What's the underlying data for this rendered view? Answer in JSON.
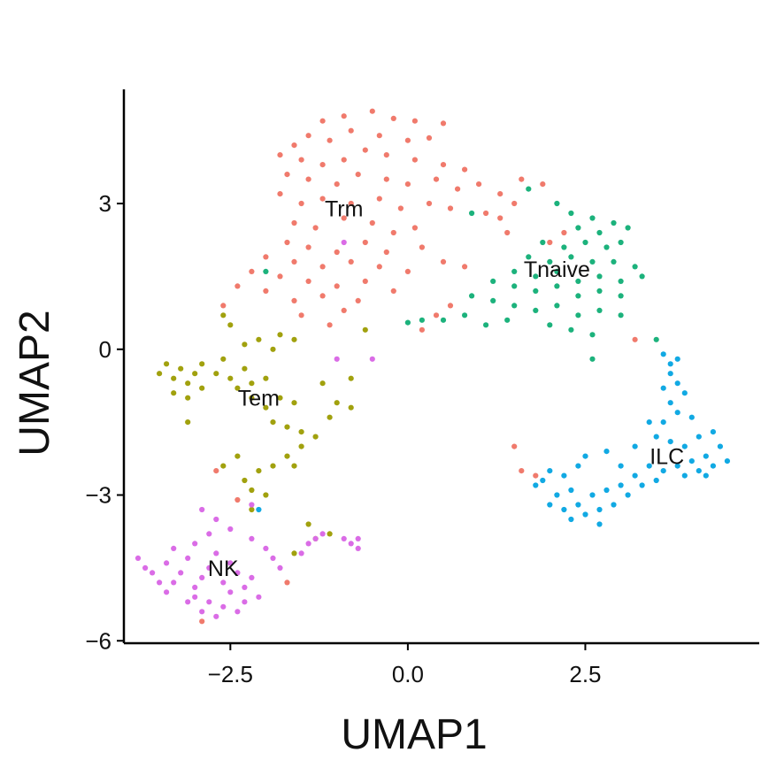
{
  "chart_data": {
    "type": "scatter",
    "title": "",
    "xlabel": "UMAP1",
    "ylabel": "UMAP2",
    "xlim": [
      -4.0,
      4.95
    ],
    "ylim": [
      -6.05,
      5.35
    ],
    "x_ticks": [
      -2.5,
      0.0,
      2.5
    ],
    "x_tick_labels": [
      "−2.5",
      "0.0",
      "2.5"
    ],
    "y_ticks": [
      -6,
      -3,
      0,
      3
    ],
    "y_tick_labels": [
      "−6",
      "−3",
      "0",
      "3"
    ],
    "grid": false,
    "legend": "none",
    "point_colors": {
      "Trm": "#F07A6C",
      "Tnaive": "#1CB27C",
      "Tem": "#A1A10E",
      "NK": "#DA6CE6",
      "ILC": "#11A9E3"
    },
    "cluster_labels": [
      {
        "name": "Trm",
        "x": -0.9,
        "y": 2.9
      },
      {
        "name": "Tnaive",
        "x": 2.1,
        "y": 1.65
      },
      {
        "name": "Tem",
        "x": -2.1,
        "y": -1.0
      },
      {
        "name": "NK",
        "x": -2.6,
        "y": -4.5
      },
      {
        "name": "ILC",
        "x": 3.65,
        "y": -2.2
      }
    ],
    "series": [
      {
        "name": "Trm",
        "points": [
          [
            -1.2,
            4.7
          ],
          [
            -0.9,
            4.8
          ],
          [
            -0.5,
            4.9
          ],
          [
            -0.2,
            4.75
          ],
          [
            0.1,
            4.7
          ],
          [
            0.5,
            4.65
          ],
          [
            -1.6,
            4.2
          ],
          [
            -1.4,
            4.4
          ],
          [
            -1.1,
            4.3
          ],
          [
            -0.8,
            4.5
          ],
          [
            -0.4,
            4.4
          ],
          [
            0.0,
            4.3
          ],
          [
            0.3,
            4.35
          ],
          [
            -1.8,
            4.0
          ],
          [
            -1.5,
            3.9
          ],
          [
            -1.2,
            3.8
          ],
          [
            -0.9,
            3.9
          ],
          [
            -0.6,
            4.1
          ],
          [
            -0.3,
            4.0
          ],
          [
            0.1,
            3.9
          ],
          [
            0.5,
            3.8
          ],
          [
            0.8,
            3.7
          ],
          [
            -1.7,
            3.6
          ],
          [
            -1.4,
            3.5
          ],
          [
            -1.0,
            3.4
          ],
          [
            -0.7,
            3.6
          ],
          [
            -0.3,
            3.5
          ],
          [
            0.0,
            3.4
          ],
          [
            0.4,
            3.5
          ],
          [
            0.7,
            3.3
          ],
          [
            1.0,
            3.4
          ],
          [
            1.3,
            3.2
          ],
          [
            -1.8,
            3.2
          ],
          [
            -1.5,
            3.0
          ],
          [
            -1.2,
            3.1
          ],
          [
            -0.8,
            3.0
          ],
          [
            -0.4,
            3.1
          ],
          [
            -0.1,
            2.9
          ],
          [
            0.3,
            3.0
          ],
          [
            0.6,
            2.9
          ],
          [
            1.1,
            2.8
          ],
          [
            1.5,
            3.0
          ],
          [
            1.6,
            3.5
          ],
          [
            1.9,
            3.4
          ],
          [
            -1.6,
            2.6
          ],
          [
            -1.3,
            2.5
          ],
          [
            -0.9,
            2.7
          ],
          [
            -0.5,
            2.6
          ],
          [
            -0.2,
            2.4
          ],
          [
            0.1,
            2.5
          ],
          [
            1.4,
            2.4
          ],
          [
            1.3,
            2.7
          ],
          [
            -1.7,
            2.2
          ],
          [
            -1.4,
            2.1
          ],
          [
            -1.0,
            2.0
          ],
          [
            -0.6,
            2.2
          ],
          [
            -0.3,
            2.0
          ],
          [
            0.2,
            2.1
          ],
          [
            -2.0,
            1.9
          ],
          [
            -1.6,
            1.8
          ],
          [
            -1.2,
            1.7
          ],
          [
            -0.8,
            1.8
          ],
          [
            -0.4,
            1.7
          ],
          [
            0.0,
            1.6
          ],
          [
            0.5,
            1.8
          ],
          [
            0.8,
            1.7
          ],
          [
            -2.2,
            1.6
          ],
          [
            -1.8,
            1.5
          ],
          [
            -1.4,
            1.4
          ],
          [
            -1.0,
            1.3
          ],
          [
            -0.6,
            1.4
          ],
          [
            -0.2,
            1.2
          ],
          [
            -2.4,
            1.3
          ],
          [
            -2.0,
            1.2
          ],
          [
            -1.6,
            1.0
          ],
          [
            -1.2,
            1.1
          ],
          [
            -0.7,
            1.0
          ],
          [
            -2.6,
            0.9
          ],
          [
            -1.5,
            0.7
          ],
          [
            -0.9,
            0.8
          ],
          [
            0.4,
            0.7
          ],
          [
            0.6,
            0.9
          ],
          [
            -1.1,
            0.5
          ],
          [
            0.2,
            0.4
          ],
          [
            2.2,
            2.4
          ],
          [
            2.0,
            2.2
          ],
          [
            3.2,
            0.2
          ],
          [
            1.5,
            -2.0
          ],
          [
            1.6,
            -2.5
          ],
          [
            1.8,
            -2.6
          ],
          [
            -2.7,
            -2.5
          ],
          [
            -2.4,
            -3.1
          ],
          [
            -1.7,
            -4.8
          ],
          [
            -2.9,
            -5.6
          ]
        ]
      },
      {
        "name": "Tnaive",
        "points": [
          [
            1.7,
            3.3
          ],
          [
            2.1,
            3.0
          ],
          [
            2.3,
            2.8
          ],
          [
            2.6,
            2.7
          ],
          [
            2.4,
            2.5
          ],
          [
            2.7,
            2.4
          ],
          [
            2.9,
            2.6
          ],
          [
            3.1,
            2.5
          ],
          [
            1.9,
            2.2
          ],
          [
            2.2,
            2.1
          ],
          [
            2.5,
            2.2
          ],
          [
            2.8,
            2.1
          ],
          [
            3.0,
            2.2
          ],
          [
            1.7,
            1.9
          ],
          [
            2.0,
            1.8
          ],
          [
            2.3,
            1.9
          ],
          [
            2.6,
            1.8
          ],
          [
            2.9,
            1.8
          ],
          [
            3.2,
            1.7
          ],
          [
            1.5,
            1.6
          ],
          [
            1.8,
            1.5
          ],
          [
            2.1,
            1.6
          ],
          [
            2.4,
            1.4
          ],
          [
            2.7,
            1.5
          ],
          [
            3.0,
            1.4
          ],
          [
            3.3,
            1.5
          ],
          [
            1.2,
            1.4
          ],
          [
            1.5,
            1.3
          ],
          [
            1.8,
            1.2
          ],
          [
            2.1,
            1.3
          ],
          [
            2.4,
            1.1
          ],
          [
            2.7,
            1.2
          ],
          [
            3.0,
            1.1
          ],
          [
            0.9,
            1.1
          ],
          [
            1.2,
            1.0
          ],
          [
            1.5,
            0.9
          ],
          [
            1.8,
            0.8
          ],
          [
            2.1,
            0.9
          ],
          [
            2.4,
            0.7
          ],
          [
            2.7,
            0.8
          ],
          [
            3.0,
            0.7
          ],
          [
            0.5,
            0.6
          ],
          [
            0.8,
            0.7
          ],
          [
            1.1,
            0.5
          ],
          [
            1.4,
            0.6
          ],
          [
            2.0,
            0.5
          ],
          [
            2.3,
            0.4
          ],
          [
            2.6,
            0.3
          ],
          [
            0.2,
            0.6
          ],
          [
            0.0,
            0.55
          ],
          [
            0.9,
            2.8
          ],
          [
            -2.0,
            1.6
          ],
          [
            2.6,
            -0.2
          ],
          [
            3.5,
            0.2
          ]
        ]
      },
      {
        "name": "Tem",
        "points": [
          [
            -3.5,
            -0.5
          ],
          [
            -3.4,
            -0.3
          ],
          [
            -3.3,
            -0.6
          ],
          [
            -3.2,
            -0.4
          ],
          [
            -3.1,
            -0.7
          ],
          [
            -3.0,
            -0.5
          ],
          [
            -2.9,
            -0.8
          ],
          [
            -3.3,
            -0.9
          ],
          [
            -3.1,
            -1.0
          ],
          [
            -2.9,
            -0.3
          ],
          [
            -2.7,
            -0.5
          ],
          [
            -2.6,
            -0.2
          ],
          [
            -2.5,
            -0.6
          ],
          [
            -2.3,
            -0.4
          ],
          [
            -2.4,
            -0.8
          ],
          [
            -2.2,
            -0.7
          ],
          [
            -2.0,
            -0.6
          ],
          [
            -2.3,
            0.1
          ],
          [
            -2.1,
            0.2
          ],
          [
            -1.9,
            0.0
          ],
          [
            -1.8,
            0.3
          ],
          [
            -1.6,
            0.2
          ],
          [
            -2.5,
            0.5
          ],
          [
            -2.6,
            0.7
          ],
          [
            -2.2,
            -1.0
          ],
          [
            -2.0,
            -1.2
          ],
          [
            -1.8,
            -1.0
          ],
          [
            -1.6,
            -1.1
          ],
          [
            -1.9,
            -1.5
          ],
          [
            -1.7,
            -1.6
          ],
          [
            -1.5,
            -1.7
          ],
          [
            -1.3,
            -1.8
          ],
          [
            -1.1,
            -1.4
          ],
          [
            -1.0,
            -1.1
          ],
          [
            -1.2,
            -0.7
          ],
          [
            -1.5,
            -2.0
          ],
          [
            -1.7,
            -2.2
          ],
          [
            -1.9,
            -2.4
          ],
          [
            -2.1,
            -2.5
          ],
          [
            -2.3,
            -2.7
          ],
          [
            -2.2,
            -2.9
          ],
          [
            -2.0,
            -3.0
          ],
          [
            -2.4,
            -2.2
          ],
          [
            -2.6,
            -2.4
          ],
          [
            -1.6,
            -2.4
          ],
          [
            -0.8,
            -0.6
          ],
          [
            -0.8,
            -1.2
          ],
          [
            -0.6,
            0.4
          ],
          [
            -3.1,
            -1.5
          ],
          [
            -1.4,
            -3.6
          ],
          [
            -1.3,
            -3.9
          ],
          [
            -1.6,
            -4.2
          ],
          [
            -1.1,
            -3.8
          ],
          [
            -2.2,
            -3.3
          ]
        ]
      },
      {
        "name": "NK",
        "points": [
          [
            -3.8,
            -4.3
          ],
          [
            -3.7,
            -4.5
          ],
          [
            -3.6,
            -4.6
          ],
          [
            -3.4,
            -4.4
          ],
          [
            -3.3,
            -4.8
          ],
          [
            -3.2,
            -4.6
          ],
          [
            -3.1,
            -4.3
          ],
          [
            -3.0,
            -4.9
          ],
          [
            -2.9,
            -4.7
          ],
          [
            -2.8,
            -4.5
          ],
          [
            -2.7,
            -4.2
          ],
          [
            -2.6,
            -4.8
          ],
          [
            -2.5,
            -4.4
          ],
          [
            -2.4,
            -4.6
          ],
          [
            -2.3,
            -4.9
          ],
          [
            -2.2,
            -4.7
          ],
          [
            -2.1,
            -5.1
          ],
          [
            -3.0,
            -5.1
          ],
          [
            -2.8,
            -5.2
          ],
          [
            -2.6,
            -5.3
          ],
          [
            -2.4,
            -5.4
          ],
          [
            -2.7,
            -5.5
          ],
          [
            -2.9,
            -5.4
          ],
          [
            -3.1,
            -5.2
          ],
          [
            -2.5,
            -5.0
          ],
          [
            -2.3,
            -5.2
          ],
          [
            -3.3,
            -4.1
          ],
          [
            -3.0,
            -4.0
          ],
          [
            -2.8,
            -3.8
          ],
          [
            -2.5,
            -3.7
          ],
          [
            -2.2,
            -3.9
          ],
          [
            -2.0,
            -4.1
          ],
          [
            -1.9,
            -4.3
          ],
          [
            -1.8,
            -4.5
          ],
          [
            -2.9,
            -3.3
          ],
          [
            -2.7,
            -3.5
          ],
          [
            -3.5,
            -4.8
          ],
          [
            -3.4,
            -5.0
          ],
          [
            -1.5,
            -4.2
          ],
          [
            -1.4,
            -4.0
          ],
          [
            -1.3,
            -3.9
          ],
          [
            -1.2,
            -3.8
          ],
          [
            -0.9,
            -3.9
          ],
          [
            -0.8,
            -4.0
          ],
          [
            -0.7,
            -3.9
          ],
          [
            -1.0,
            -0.2
          ],
          [
            -0.5,
            -0.2
          ],
          [
            -0.9,
            2.2
          ],
          [
            -0.7,
            -4.1
          ],
          [
            -2.2,
            -3.2
          ]
        ]
      },
      {
        "name": "ILC",
        "points": [
          [
            3.6,
            -0.1
          ],
          [
            3.7,
            -0.3
          ],
          [
            3.8,
            -0.2
          ],
          [
            3.7,
            -0.5
          ],
          [
            3.8,
            -0.7
          ],
          [
            3.6,
            -0.8
          ],
          [
            3.9,
            -0.9
          ],
          [
            3.7,
            -1.1
          ],
          [
            3.8,
            -1.3
          ],
          [
            4.0,
            -1.4
          ],
          [
            3.6,
            -1.5
          ],
          [
            3.5,
            -1.8
          ],
          [
            3.7,
            -1.9
          ],
          [
            3.9,
            -2.0
          ],
          [
            4.1,
            -1.8
          ],
          [
            4.3,
            -1.7
          ],
          [
            4.4,
            -2.0
          ],
          [
            4.2,
            -2.2
          ],
          [
            4.0,
            -2.3
          ],
          [
            3.8,
            -2.4
          ],
          [
            3.6,
            -2.5
          ],
          [
            3.4,
            -2.4
          ],
          [
            3.2,
            -2.6
          ],
          [
            3.0,
            -2.8
          ],
          [
            2.8,
            -2.9
          ],
          [
            2.6,
            -3.0
          ],
          [
            2.4,
            -3.2
          ],
          [
            2.2,
            -3.3
          ],
          [
            2.5,
            -3.4
          ],
          [
            2.7,
            -3.3
          ],
          [
            2.9,
            -3.2
          ],
          [
            3.1,
            -3.0
          ],
          [
            3.3,
            -2.8
          ],
          [
            3.5,
            -2.7
          ],
          [
            3.9,
            -2.6
          ],
          [
            4.1,
            -2.5
          ],
          [
            4.3,
            -2.4
          ],
          [
            4.5,
            -2.3
          ],
          [
            2.0,
            -2.5
          ],
          [
            2.2,
            -2.6
          ],
          [
            2.4,
            -2.4
          ],
          [
            1.9,
            -2.7
          ],
          [
            1.8,
            -2.8
          ],
          [
            2.1,
            -3.0
          ],
          [
            2.3,
            -2.9
          ],
          [
            2.0,
            -3.2
          ],
          [
            2.5,
            -2.2
          ],
          [
            2.8,
            -2.1
          ],
          [
            3.4,
            -1.5
          ],
          [
            3.2,
            -2.0
          ],
          [
            3.0,
            -2.4
          ],
          [
            4.2,
            -2.6
          ],
          [
            2.3,
            -3.5
          ],
          [
            2.7,
            -3.6
          ],
          [
            -2.1,
            -3.3
          ]
        ]
      }
    ]
  }
}
